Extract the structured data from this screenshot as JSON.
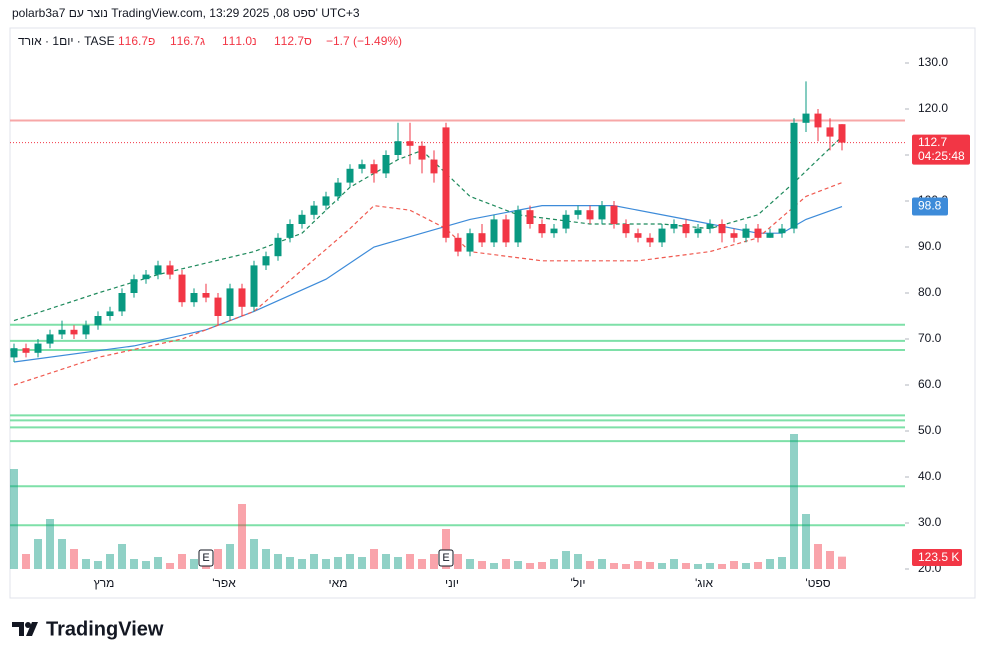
{
  "header": {
    "caption": "polarb3a7 נוצר עם TradingView.com, 13:29 2025 ,08 ספט' UTC+3",
    "symbol": "יום1 · אורד · TASE",
    "ohlc": [
      "פ116.7",
      "ג116.7",
      "נ111.0",
      "ס112.7",
      "−1.7 (−1.49%)"
    ]
  },
  "footer": {
    "logo": "TradingView"
  },
  "chart_data": {
    "type": "candlestick",
    "up_color": "#089981",
    "down_color": "#f23645",
    "open": [
      66,
      68,
      67,
      69,
      71,
      72,
      71,
      73,
      75,
      76,
      80,
      83,
      84,
      86,
      84,
      78,
      80,
      79,
      75,
      81,
      77,
      86,
      88,
      92,
      95,
      97,
      99,
      101,
      104,
      107,
      108,
      106,
      110,
      113,
      112,
      109,
      116,
      92,
      89,
      93,
      91,
      96,
      91,
      98,
      95,
      93,
      94,
      97,
      98,
      96,
      99,
      95,
      93,
      92,
      91,
      94,
      95,
      93,
      94,
      95,
      93,
      92,
      94,
      92,
      93,
      94,
      117,
      119,
      116,
      116.7
    ],
    "high": [
      69,
      69,
      70,
      72,
      74,
      73,
      74,
      76,
      77,
      81,
      84,
      85,
      87,
      87,
      85,
      81,
      82,
      80,
      82,
      82,
      87,
      89,
      93,
      96,
      98,
      100,
      102,
      105,
      108,
      109,
      109,
      111,
      117,
      117,
      113,
      111,
      117,
      93,
      94,
      95,
      97,
      97,
      99,
      99,
      96,
      95,
      98,
      99,
      99,
      100,
      100,
      96,
      94,
      93,
      95,
      96,
      96,
      95,
      96,
      96,
      94,
      95,
      95,
      94,
      95,
      118,
      126,
      120,
      118,
      116.7
    ],
    "low": [
      65,
      66,
      66,
      68,
      70,
      70,
      70,
      72,
      74,
      75,
      79,
      82,
      83,
      83,
      77,
      77,
      78,
      73,
      74,
      75,
      76,
      85,
      87,
      91,
      94,
      96,
      98,
      100,
      103,
      106,
      104,
      105,
      109,
      108,
      106,
      104,
      91,
      88,
      88,
      90,
      90,
      90,
      90,
      94,
      92,
      92,
      93,
      96,
      95,
      95,
      94,
      92,
      91,
      90,
      90,
      93,
      92,
      92,
      93,
      91,
      91,
      91,
      91,
      92,
      92,
      93,
      115,
      113,
      111,
      111
    ],
    "close": [
      68,
      67,
      69,
      71,
      72,
      71,
      73,
      75,
      76,
      80,
      83,
      84,
      86,
      84,
      78,
      80,
      79,
      75,
      81,
      77,
      86,
      88,
      92,
      95,
      97,
      99,
      101,
      104,
      107,
      108,
      106,
      110,
      113,
      112,
      109,
      106,
      92,
      89,
      93,
      91,
      96,
      91,
      98,
      95,
      93,
      94,
      97,
      98,
      96,
      99,
      95,
      93,
      92,
      91,
      94,
      95,
      93,
      94,
      95,
      93,
      92,
      94,
      92,
      93,
      94,
      117,
      119,
      116,
      114,
      112.7
    ],
    "volume": [
      1000,
      150,
      300,
      500,
      300,
      200,
      100,
      80,
      150,
      250,
      100,
      80,
      120,
      60,
      150,
      100,
      80,
      200,
      250,
      650,
      300,
      200,
      150,
      120,
      100,
      150,
      100,
      120,
      150,
      120,
      200,
      150,
      120,
      150,
      100,
      150,
      400,
      150,
      100,
      80,
      60,
      100,
      80,
      60,
      70,
      100,
      180,
      150,
      80,
      100,
      60,
      50,
      80,
      70,
      60,
      100,
      60,
      50,
      60,
      50,
      80,
      60,
      70,
      100,
      120,
      1350,
      550,
      250,
      180,
      123.5
    ],
    "volume_last": {
      "value": 123.5,
      "label": "123.5 K"
    },
    "ylim": [
      20,
      135
    ],
    "yticks": [
      {
        "value": 20,
        "label": "20.0"
      },
      {
        "value": 30,
        "label": "30.0"
      },
      {
        "value": 40,
        "label": "40.0"
      },
      {
        "value": 50,
        "label": "50.0"
      },
      {
        "value": 60,
        "label": "60.0"
      },
      {
        "value": 70,
        "label": "70.0"
      },
      {
        "value": 80,
        "label": "80.0"
      },
      {
        "value": 90,
        "label": "90.0"
      },
      {
        "value": 100,
        "label": "100.0"
      },
      {
        "value": 110,
        "label": "110.0"
      },
      {
        "value": 120,
        "label": "120.0"
      },
      {
        "value": 130,
        "label": "130.0"
      }
    ],
    "xticks": [
      {
        "value": 7.5,
        "label": "מרץ"
      },
      {
        "value": 17.5,
        "label": "אפר'"
      },
      {
        "value": 27,
        "label": "מאי"
      },
      {
        "value": 36.5,
        "label": "יוני"
      },
      {
        "value": 47,
        "label": "יול'"
      },
      {
        "value": 57.5,
        "label": "אוג'"
      },
      {
        "value": 67,
        "label": "ספט'"
      }
    ],
    "earnings": [
      {
        "index": 16,
        "label": "E"
      },
      {
        "index": 36,
        "label": "E"
      }
    ],
    "price_line": {
      "value": 112.7,
      "countdown": "04:25:48",
      "color": "#f23645"
    },
    "levels": [
      {
        "value": 117.5,
        "color": "#f7a7a7"
      },
      {
        "value": 73.1,
        "color": "#7ee0a8"
      },
      {
        "value": 69.6,
        "color": "#7ee0a8"
      },
      {
        "value": 67.6,
        "color": "#7ee0a8"
      },
      {
        "value": 53.4,
        "color": "#7ee0a8"
      },
      {
        "value": 52.3,
        "color": "#7ee0a8"
      },
      {
        "value": 50.8,
        "color": "#7ee0a8"
      },
      {
        "value": 47.8,
        "color": "#7ee0a8"
      },
      {
        "value": 38.0,
        "color": "#7ee0a8"
      },
      {
        "value": 29.5,
        "color": "#7ee0a8"
      }
    ],
    "lines": [
      {
        "name_style": "ma",
        "color": "#3d8bd9",
        "dashed": false,
        "x": [
          0,
          10,
          16,
          20,
          26,
          30,
          34,
          38,
          44,
          50,
          56,
          62,
          64,
          66,
          69
        ],
        "values": [
          65,
          68.5,
          72,
          76,
          83,
          90,
          93,
          96,
          99,
          99,
          96,
          93,
          93,
          96,
          98.8
        ]
      },
      {
        "name_style": "upper",
        "color": "#1e8a5c",
        "dashed": true,
        "x": [
          0,
          7,
          12,
          20,
          24,
          28,
          32,
          34,
          38,
          42,
          48,
          54,
          58,
          62,
          65,
          69
        ],
        "values": [
          74,
          80,
          84,
          89,
          93,
          103,
          109,
          111,
          101,
          97,
          95,
          95,
          94,
          97,
          104,
          114
        ]
      },
      {
        "name_style": "lower",
        "color": "#f05a50",
        "dashed": true,
        "x": [
          0,
          7,
          14,
          20,
          24,
          28,
          30,
          33,
          36,
          38,
          44,
          52,
          58,
          62,
          66,
          69
        ],
        "values": [
          60,
          66,
          70,
          76,
          85,
          94,
          99,
          98,
          94,
          89,
          87,
          87,
          89,
          92,
          101,
          104
        ]
      }
    ]
  }
}
